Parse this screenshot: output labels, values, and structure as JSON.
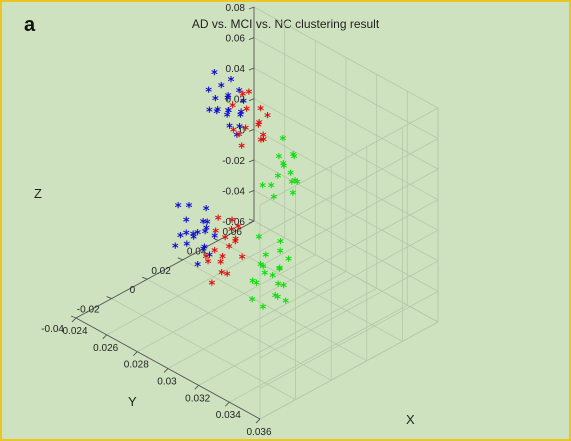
{
  "panel_label": "a",
  "chart_data": {
    "type": "scatter",
    "title": "AD vs. MCI vs. NC clustering result",
    "xlabel": "X",
    "ylabel": "Y",
    "zlabel": "Z",
    "xlim": [
      0.024,
      0.036
    ],
    "ylim": [
      -0.04,
      0.06
    ],
    "zlim": [
      -0.06,
      0.08
    ],
    "x_ticks": [
      "0.024",
      "0.026",
      "0.028",
      "0.03",
      "0.032",
      "0.034",
      "0.036"
    ],
    "y_ticks": [
      "-0.04",
      "-0.02",
      "0",
      "0.02",
      "0.04",
      "0.06"
    ],
    "z_ticks": [
      "-0.06",
      "-0.04",
      "-0.02",
      "0",
      "0.02",
      "0.04",
      "0.06",
      "0.08"
    ],
    "marker": "*",
    "grid": true,
    "series": [
      {
        "color": "#1010cc",
        "points": [
          [
            0.0252,
            0.028,
            0.046
          ],
          [
            0.0256,
            0.032,
            0.038
          ],
          [
            0.0258,
            0.03,
            0.05
          ],
          [
            0.0262,
            0.026,
            0.042
          ],
          [
            0.0254,
            0.035,
            0.055
          ],
          [
            0.026,
            0.029,
            0.032
          ],
          [
            0.0265,
            0.024,
            0.048
          ],
          [
            0.025,
            0.031,
            0.036
          ],
          [
            0.0257,
            0.027,
            0.058
          ],
          [
            0.0263,
            0.033,
            0.04
          ],
          [
            0.0255,
            0.022,
            0.044
          ],
          [
            0.0268,
            0.03,
            0.052
          ],
          [
            0.0259,
            0.036,
            0.034
          ],
          [
            0.0251,
            0.025,
            0.053
          ],
          [
            0.0266,
            0.028,
            0.03
          ],
          [
            0.0261,
            0.021,
            0.047
          ],
          [
            0.0253,
            0.034,
            0.043
          ],
          [
            0.027,
            0.026,
            0.039
          ],
          [
            0.0249,
            0.03,
            0.06
          ],
          [
            0.0264,
            0.031,
            0.056
          ],
          [
            0.0262,
            0.003,
            -0.012
          ],
          [
            0.0266,
            0.006,
            -0.02
          ],
          [
            0.027,
            0.0,
            -0.015
          ],
          [
            0.0258,
            0.008,
            -0.008
          ],
          [
            0.0272,
            0.004,
            -0.026
          ],
          [
            0.0264,
            -0.002,
            -0.018
          ],
          [
            0.0268,
            0.009,
            -0.005
          ],
          [
            0.0275,
            0.002,
            -0.022
          ],
          [
            0.026,
            0.005,
            -0.03
          ],
          [
            0.0271,
            0.007,
            -0.011
          ],
          [
            0.0263,
            -0.004,
            -0.024
          ],
          [
            0.0277,
            0.006,
            -0.016
          ],
          [
            0.0259,
            0.001,
            -0.003
          ],
          [
            0.0274,
            -0.001,
            -0.032
          ],
          [
            0.0267,
            0.01,
            -0.019
          ],
          [
            0.0261,
            0.008,
            -0.027
          ],
          [
            0.0273,
            0.003,
            -0.007
          ],
          [
            0.0269,
            -0.003,
            -0.013
          ],
          [
            0.0265,
            0.011,
            -0.023
          ],
          [
            0.0276,
            0.004,
            -0.028
          ]
        ]
      },
      {
        "color": "#dd1111",
        "points": [
          [
            0.027,
            0.03,
            0.048
          ],
          [
            0.0274,
            0.026,
            0.04
          ],
          [
            0.0278,
            0.031,
            0.052
          ],
          [
            0.0272,
            0.024,
            0.036
          ],
          [
            0.028,
            0.028,
            0.044
          ],
          [
            0.0268,
            0.033,
            0.056
          ],
          [
            0.0276,
            0.022,
            0.032
          ],
          [
            0.0282,
            0.029,
            0.038
          ],
          [
            0.0271,
            0.027,
            0.06
          ],
          [
            0.0279,
            0.034,
            0.046
          ],
          [
            0.0273,
            0.02,
            0.042
          ],
          [
            0.0284,
            0.025,
            0.05
          ],
          [
            0.0277,
            0.032,
            0.03
          ],
          [
            0.0269,
            0.023,
            0.054
          ],
          [
            0.0281,
            0.03,
            0.034
          ],
          [
            0.028,
            0.004,
            -0.01
          ],
          [
            0.0284,
            0.0,
            -0.018
          ],
          [
            0.0288,
            0.006,
            -0.006
          ],
          [
            0.0282,
            -0.002,
            -0.025
          ],
          [
            0.029,
            0.003,
            -0.014
          ],
          [
            0.0286,
            0.008,
            -0.002
          ],
          [
            0.0283,
            -0.004,
            -0.02
          ],
          [
            0.0291,
            0.001,
            -0.03
          ],
          [
            0.0285,
            0.005,
            -0.012
          ],
          [
            0.0289,
            -0.001,
            -0.022
          ],
          [
            0.0281,
            0.007,
            -0.028
          ],
          [
            0.0293,
            0.004,
            -0.008
          ],
          [
            0.0287,
            0.009,
            -0.016
          ],
          [
            0.0292,
            -0.003,
            -0.026
          ],
          [
            0.0284,
            0.002,
            0.002
          ],
          [
            0.0295,
            0.006,
            -0.02
          ],
          [
            0.0288,
            -0.005,
            -0.034
          ],
          [
            0.029,
            0.008,
            -0.004
          ]
        ]
      },
      {
        "color": "#11dd11",
        "points": [
          [
            0.0298,
            0.024,
            0.036
          ],
          [
            0.0302,
            0.02,
            0.028
          ],
          [
            0.0305,
            0.026,
            0.04
          ],
          [
            0.03,
            0.018,
            0.022
          ],
          [
            0.0308,
            0.022,
            0.032
          ],
          [
            0.0296,
            0.028,
            0.044
          ],
          [
            0.0304,
            0.016,
            0.018
          ],
          [
            0.031,
            0.024,
            0.026
          ],
          [
            0.0301,
            0.03,
            0.034
          ],
          [
            0.0307,
            0.019,
            0.038
          ],
          [
            0.0299,
            0.014,
            0.024
          ],
          [
            0.0312,
            0.021,
            0.03
          ],
          [
            0.0303,
            0.027,
            0.02
          ],
          [
            0.0309,
            0.017,
            0.042
          ],
          [
            0.0306,
            0.025,
            0.016
          ],
          [
            0.0315,
            0.002,
            -0.005
          ],
          [
            0.0319,
            -0.002,
            -0.012
          ],
          [
            0.0322,
            0.004,
            0.0
          ],
          [
            0.0317,
            -0.005,
            -0.018
          ],
          [
            0.0325,
            0.001,
            -0.008
          ],
          [
            0.032,
            0.006,
            0.004
          ],
          [
            0.0318,
            -0.008,
            -0.014
          ],
          [
            0.0327,
            -0.003,
            -0.022
          ],
          [
            0.0323,
            0.003,
            -0.01
          ],
          [
            0.0321,
            -0.006,
            -0.003
          ],
          [
            0.0329,
            0.0,
            -0.016
          ],
          [
            0.0316,
            0.005,
            -0.02
          ],
          [
            0.0326,
            -0.009,
            -0.026
          ],
          [
            0.0324,
            0.007,
            -0.006
          ],
          [
            0.033,
            -0.004,
            -0.012
          ],
          [
            0.0314,
            -0.001,
            0.008
          ],
          [
            0.0328,
            0.002,
            -0.028
          ],
          [
            0.0332,
            -0.006,
            -0.018
          ],
          [
            0.032,
            -0.01,
            -0.024
          ],
          [
            0.0311,
            0.004,
            -0.016
          ]
        ]
      }
    ]
  }
}
